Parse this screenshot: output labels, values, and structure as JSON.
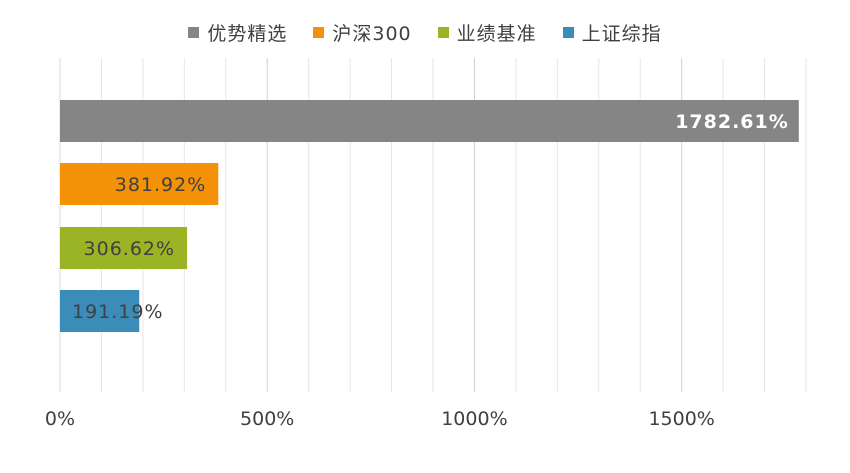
{
  "chart_data": {
    "type": "bar",
    "orientation": "horizontal",
    "categories": [
      "优势精选",
      "沪深300",
      "业绩基准",
      "上证综指"
    ],
    "values": [
      1782.61,
      381.92,
      306.62,
      191.19
    ],
    "value_labels": [
      "1782.61%",
      "381.92%",
      "306.62%",
      "191.19%"
    ],
    "colors": [
      "#858585",
      "#f39108",
      "#9bb425",
      "#3b8cb8"
    ],
    "x_ticks": [
      "0%",
      "500%",
      "1000%",
      "1500%"
    ],
    "x_tick_values": [
      0,
      500,
      1000,
      1500
    ],
    "xlim": [
      0,
      1800
    ],
    "grid": "vertical",
    "legend_position": "top",
    "legend": [
      "优势精选",
      "沪深300",
      "业绩基准",
      "上证综指"
    ]
  }
}
